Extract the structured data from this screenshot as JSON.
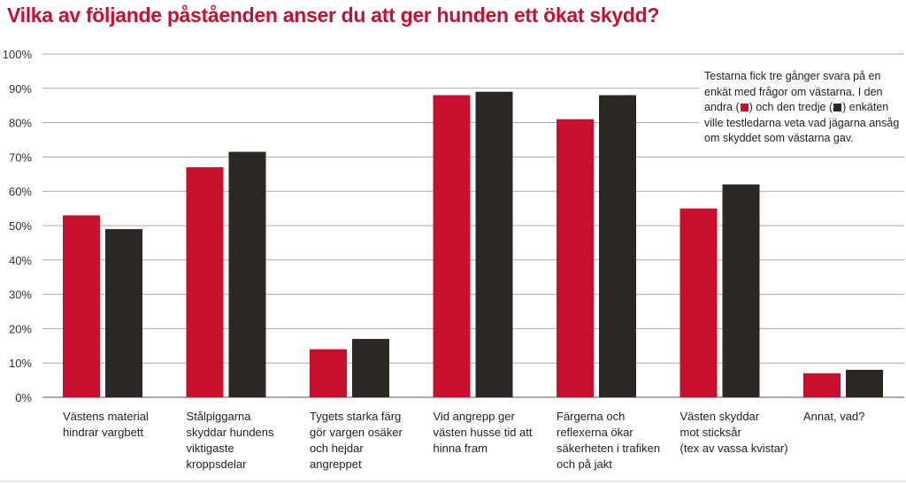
{
  "title": "Vilka av följande påståenden anser du att ger hunden ett ökat skydd?",
  "colors": {
    "accent": "#c8102e",
    "series1": "#c8102e",
    "series2": "#2b2722",
    "grid": "#a9a9a9"
  },
  "note": {
    "text_before": "Testarna fick tre gånger svara på en enkät med frågor om västarna. I den andra (",
    "text_between": ") och den tredje (",
    "text_after": ") enkäten ville testledarna veta vad jägarna ansåg om skyddet som västarna gav."
  },
  "chart_data": {
    "type": "bar",
    "title": "Vilka av följande påståenden anser du att ger hunden ett ökat skydd?",
    "xlabel": "",
    "ylabel": "",
    "ylim": [
      0,
      100
    ],
    "yticks": [
      "0%",
      "10%",
      "20%",
      "30%",
      "40%",
      "50%",
      "60%",
      "70%",
      "80%",
      "90%",
      "100%"
    ],
    "grid": true,
    "categories": [
      [
        "Västens material",
        "hindrar vargbett"
      ],
      [
        "Stålpiggarna",
        "skyddar hundens",
        "viktigaste",
        "kroppsdelar"
      ],
      [
        "Tygets starka färg",
        "gör vargen osäker",
        "och hejdar",
        "angreppet"
      ],
      [
        "Vid angrepp ger",
        "västen husse tid att",
        "hinna fram"
      ],
      [
        "Färgerna och",
        "reflexerna ökar",
        "säkerheten i trafiken",
        "och på jakt"
      ],
      [
        "Västen skyddar",
        "mot sticksår",
        "(tex av vassa kvistar)"
      ],
      [
        "Annat, vad?"
      ]
    ],
    "series": [
      {
        "color": "#c8102e",
        "values": [
          53,
          67,
          14,
          88,
          81,
          55,
          7
        ]
      },
      {
        "color": "#2b2722",
        "values": [
          49,
          71.5,
          17,
          89,
          88,
          62,
          8
        ]
      }
    ]
  }
}
